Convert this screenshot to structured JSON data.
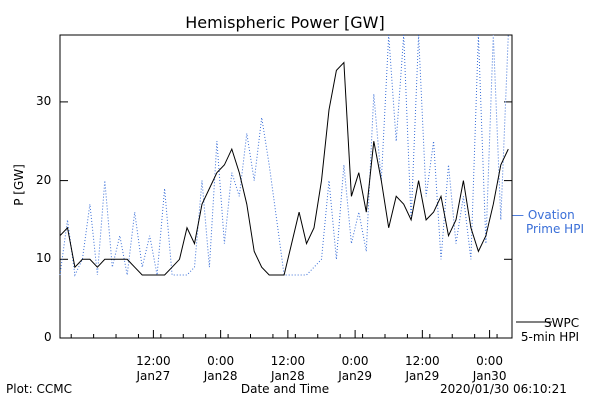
{
  "chart_data": {
    "type": "line",
    "title": "Hemispheric Power [GW]",
    "xlabel": "Date and Time",
    "ylabel": "P [GW]",
    "ylim": [
      0,
      38.5
    ],
    "yticks": [
      "0",
      "10",
      "20",
      "30"
    ],
    "x_tick_labels": [
      {
        "time": "12:00",
        "date": "Jan27"
      },
      {
        "time": "0:00",
        "date": "Jan28"
      },
      {
        "time": "12:00",
        "date": "Jan28"
      },
      {
        "time": "0:00",
        "date": "Jan29"
      },
      {
        "time": "12:00",
        "date": "Jan29"
      },
      {
        "time": "0:00",
        "date": "Jan30"
      }
    ],
    "xlim_hours": [
      -17,
      7.2
    ],
    "series": [
      {
        "name": "Ovation Prime HPI",
        "style": "dotted",
        "color": "#3a6fd8",
        "x": [
          -17,
          -16.6,
          -16.2,
          -15.8,
          -15.4,
          -15,
          -14.6,
          -14.2,
          -13.8,
          -13.4,
          -13,
          -12.6,
          -12.2,
          -11.8,
          -11.4,
          -11,
          -10.6,
          -10.2,
          -9.8,
          -9.4,
          -9,
          -8.6,
          -8.2,
          -7.8,
          -7.4,
          -7,
          -6.6,
          -6.2,
          -5.8,
          -5.4,
          -5,
          -4.6,
          -4.2,
          -3.8,
          -3.4,
          -3,
          -2.6,
          -2.2,
          -1.8,
          -1.4,
          -1,
          -0.6,
          -0.2,
          0.2,
          0.6,
          1,
          1.4,
          1.8,
          2.2,
          2.6,
          3,
          3.4,
          3.8,
          4.2,
          4.6,
          5,
          5.4,
          5.8,
          6.2,
          6.6,
          7
        ],
        "values": [
          8,
          15,
          8,
          10,
          17,
          8,
          20,
          9,
          13,
          8,
          16,
          9,
          13,
          8,
          19,
          8,
          8,
          8,
          9,
          20,
          9,
          25,
          12,
          21,
          18,
          26,
          20,
          28,
          22,
          15,
          8,
          8,
          8,
          8,
          9,
          10,
          20,
          10,
          22,
          12,
          16,
          11,
          31,
          20,
          40,
          25,
          40,
          15,
          40,
          18,
          25,
          10,
          22,
          12,
          18,
          10,
          40,
          12,
          40,
          15,
          40
        ],
        "tick_labels": []
      },
      {
        "name": "SWPC 5-min HPI",
        "style": "solid",
        "color": "#000000",
        "x": [
          -17,
          -16.6,
          -16.2,
          -15.8,
          -15.4,
          -15,
          -14.6,
          -14.2,
          -13.8,
          -13.4,
          -13,
          -12.6,
          -12.2,
          -11.8,
          -11.4,
          -11,
          -10.6,
          -10.2,
          -9.8,
          -9.4,
          -9,
          -8.6,
          -8.2,
          -7.8,
          -7.4,
          -7,
          -6.6,
          -6.2,
          -5.8,
          -5.4,
          -5,
          -4.6,
          -4.2,
          -3.8,
          -3.4,
          -3,
          -2.6,
          -2.2,
          -1.8,
          -1.4,
          -1,
          -0.6,
          -0.2,
          0.2,
          0.6,
          1,
          1.4,
          1.8,
          2.2,
          2.6,
          3,
          3.4,
          3.8,
          4.2,
          4.6,
          5,
          5.4,
          5.8,
          6.2,
          6.6,
          7
        ],
        "values": [
          13,
          14,
          9,
          10,
          10,
          9,
          10,
          10,
          10,
          10,
          9,
          8,
          8,
          8,
          8,
          9,
          10,
          14,
          12,
          17,
          19,
          21,
          22,
          24,
          21,
          17,
          11,
          9,
          8,
          8,
          8,
          12,
          16,
          12,
          14,
          20,
          29,
          34,
          35,
          18,
          21,
          16,
          25,
          20,
          14,
          18,
          17,
          15,
          20,
          15,
          16,
          18,
          13,
          15,
          20,
          14,
          11,
          13,
          17,
          22,
          24
        ],
        "tick_labels": []
      }
    ],
    "legend": [
      {
        "label": "— Ovation\nPrime HPI",
        "color": "#3a6fd8"
      },
      {
        "label": "SWPC\n5-min HPI",
        "color": "#000000"
      }
    ],
    "grid": false
  },
  "footer": {
    "left": "Plot: CCMC",
    "center": "Date and Time",
    "right": "2020/01/30 06:10:21"
  }
}
